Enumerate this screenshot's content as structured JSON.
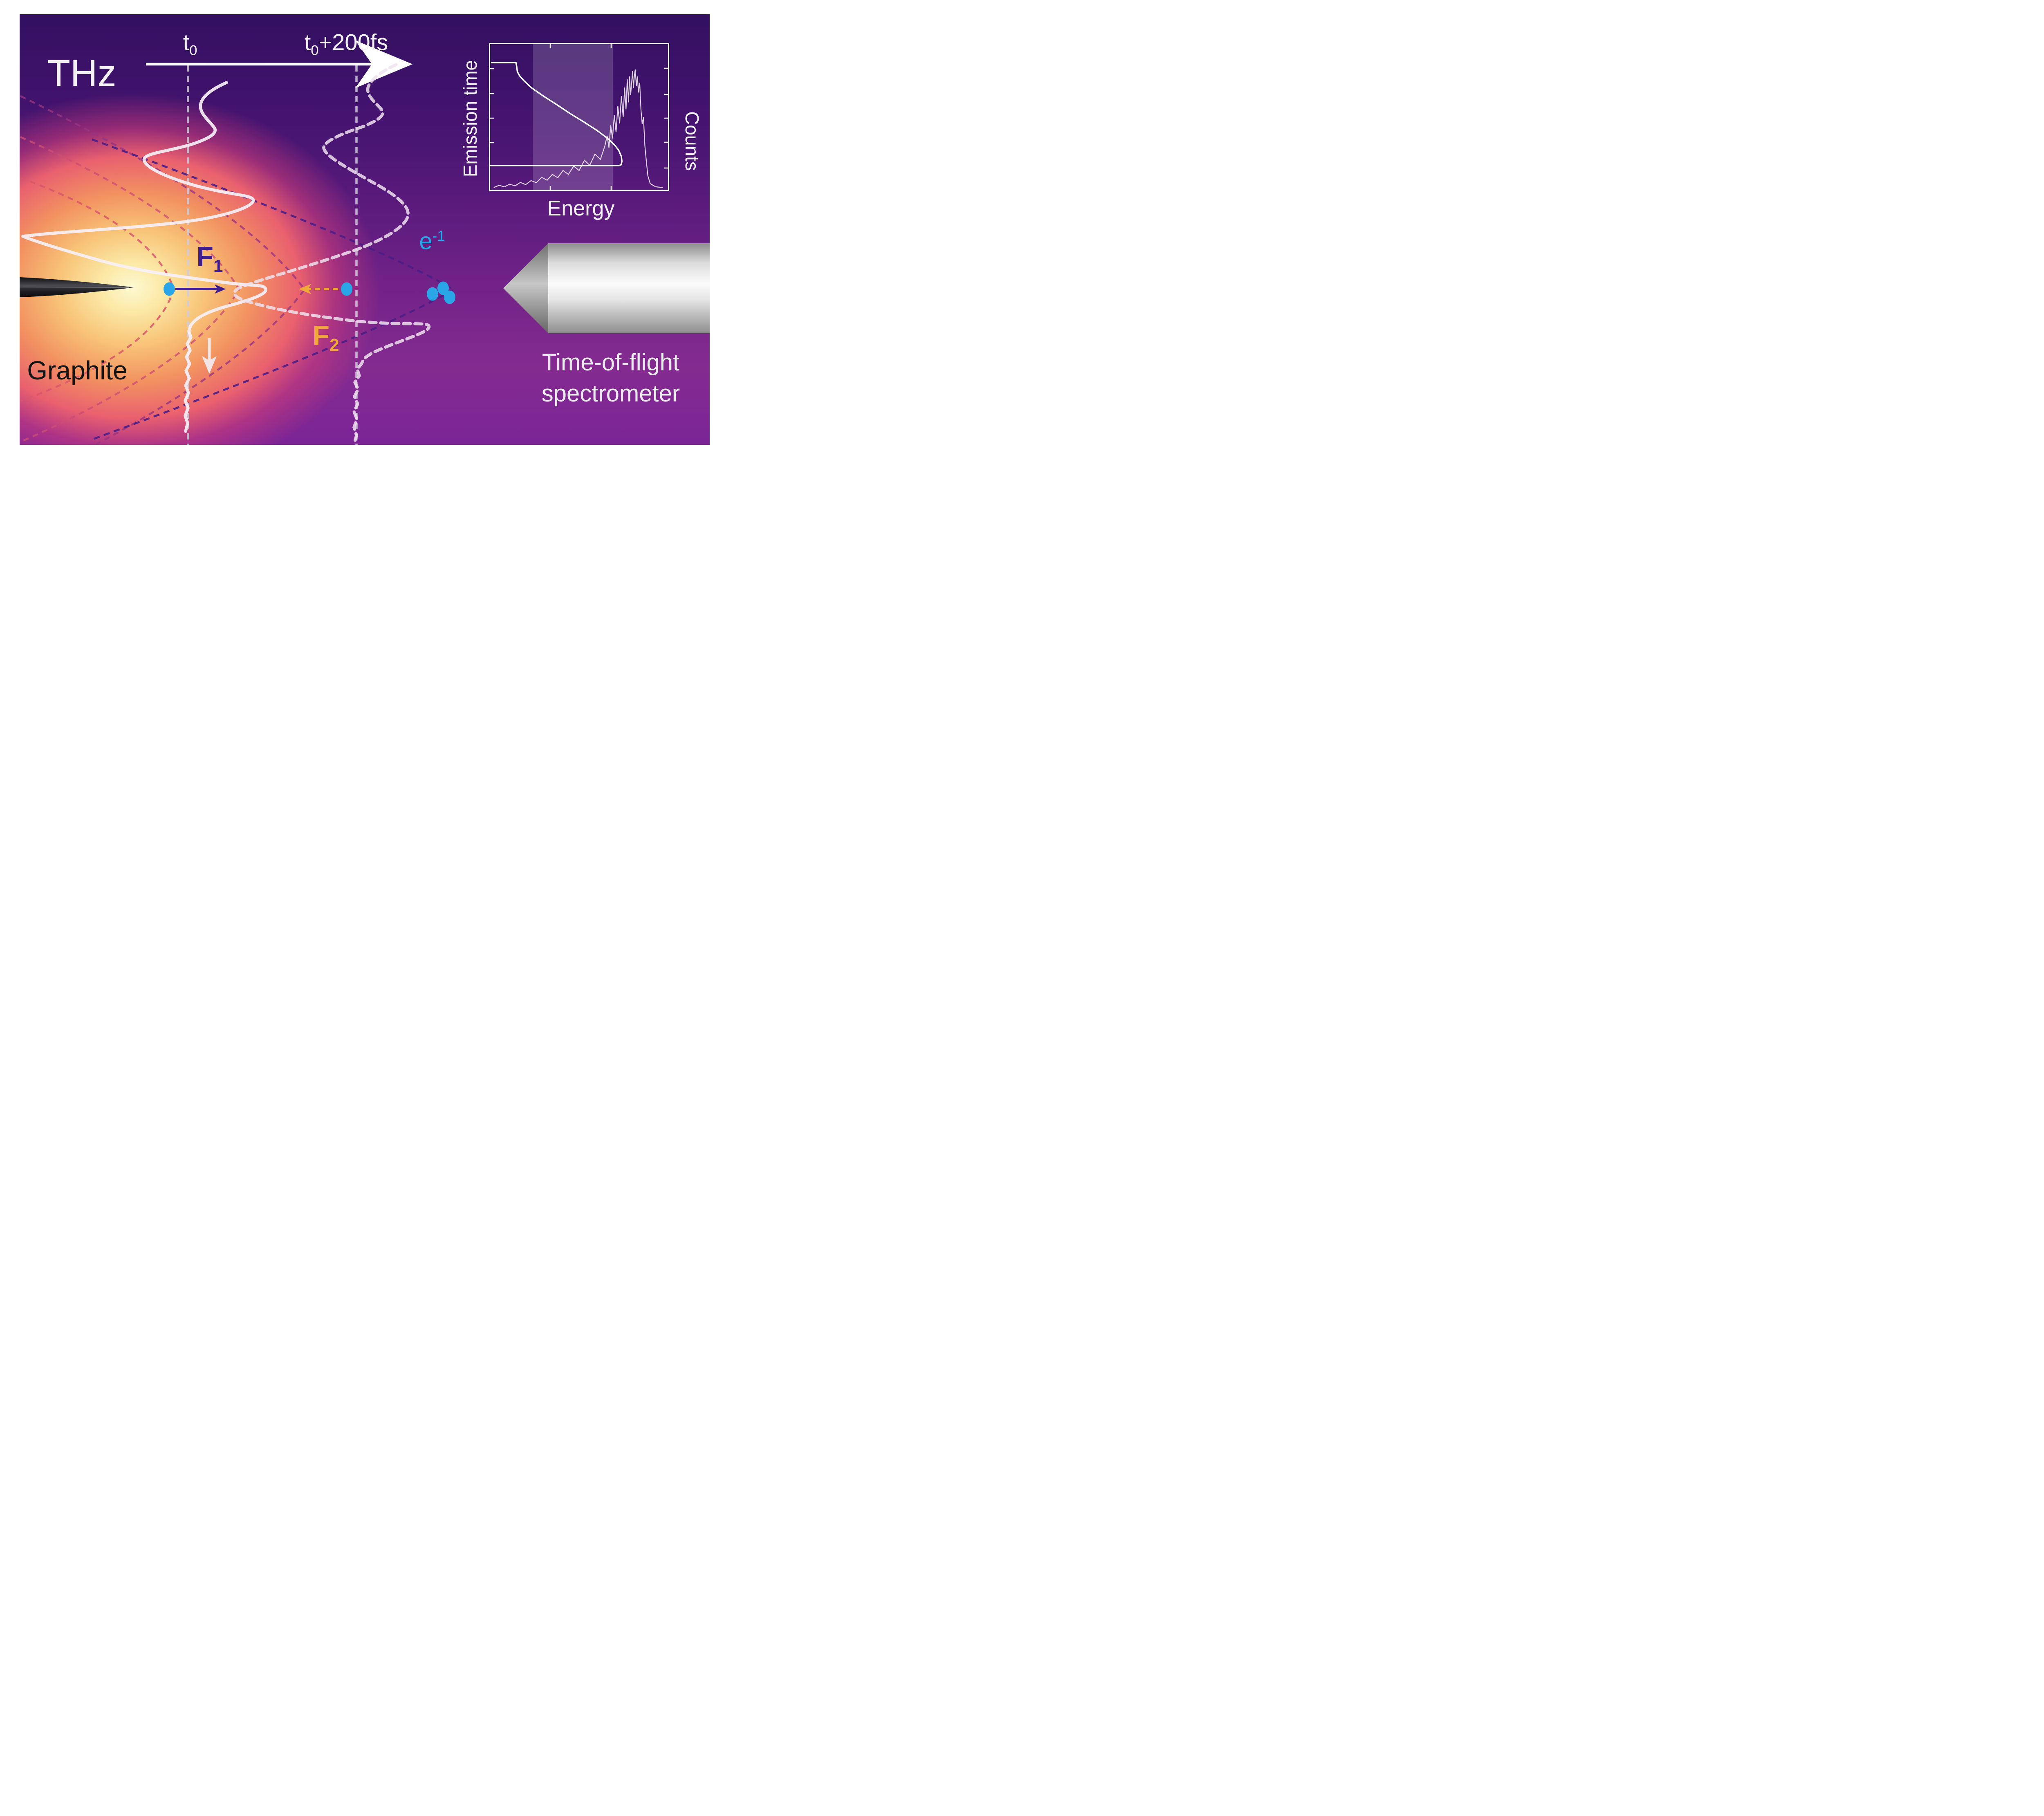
{
  "labels": {
    "thz": "THz",
    "graphite": "Graphite",
    "tof_line1": "Time-of-flight",
    "tof_line2": "spectrometer"
  },
  "timeline": {
    "t0": {
      "base": "t",
      "sub": "0"
    },
    "t1": {
      "base": "t",
      "sub": "0",
      "rest": "+200fs"
    }
  },
  "forces": {
    "f1": {
      "base": "F",
      "sub": "1"
    },
    "f2": {
      "base": "F",
      "sub": "2"
    }
  },
  "electron": {
    "base": "e",
    "sup": "-1"
  },
  "colors": {
    "background_top": "#331061",
    "background_bottom": "#7b2496",
    "glow_core": "#fdf9d2",
    "glow_orange": "#f29260",
    "glow_pink": "#e9606f",
    "waveform_solid": "#f7f0f6",
    "waveform_dashed": "#efe2ee",
    "time_marker_line": "#d2ccdc",
    "f1_arrow": "#3f1d8c",
    "f2_arrow": "#f2a93b",
    "electron_dot": "#29a5e8",
    "contour_near_tip": "#d8566b",
    "contour_far": "#4a1e87",
    "graphite_text": "#141414",
    "white_text": "#f4f2f6"
  },
  "chart_data": {
    "type": "line",
    "title": "",
    "xlabel": "Energy",
    "ylabel_left": "Emission time",
    "ylabel_right": "Counts",
    "axis_ranges": "unlabeled (arbitrary units)",
    "grid": false,
    "legend": "none",
    "shaded_band_x": [
      0.24,
      0.689
    ],
    "series": [
      {
        "name": "emission-time-vs-energy",
        "x": [
          0.005,
          0.145,
          0.149,
          0.153,
          0.166,
          0.19,
          0.235,
          0.3,
          0.37,
          0.45,
          0.53,
          0.6,
          0.655,
          0.695,
          0.722,
          0.738,
          0.741,
          0.737,
          0.725,
          0.7,
          0.0
        ],
        "y": [
          0.127,
          0.127,
          0.152,
          0.19,
          0.218,
          0.252,
          0.302,
          0.357,
          0.412,
          0.477,
          0.537,
          0.592,
          0.642,
          0.687,
          0.727,
          0.772,
          0.805,
          0.828,
          0.834,
          0.834,
          0.834
        ]
      },
      {
        "name": "counts-spectrum",
        "x": [
          0.02,
          0.05,
          0.08,
          0.11,
          0.14,
          0.17,
          0.2,
          0.23,
          0.26,
          0.29,
          0.32,
          0.35,
          0.38,
          0.41,
          0.44,
          0.47,
          0.5,
          0.53,
          0.56,
          0.59,
          0.62,
          0.645,
          0.658,
          0.668,
          0.678,
          0.688,
          0.698,
          0.708,
          0.718,
          0.728,
          0.738,
          0.748,
          0.756,
          0.764,
          0.771,
          0.778,
          0.784,
          0.79,
          0.796,
          0.801,
          0.806,
          0.811,
          0.816,
          0.822,
          0.828,
          0.834,
          0.841,
          0.848,
          0.855,
          0.862,
          0.87,
          0.878,
          0.887,
          0.9,
          0.93,
          0.97
        ],
        "y": [
          0.985,
          0.97,
          0.98,
          0.962,
          0.974,
          0.95,
          0.965,
          0.938,
          0.952,
          0.915,
          0.935,
          0.895,
          0.918,
          0.868,
          0.895,
          0.838,
          0.868,
          0.798,
          0.832,
          0.755,
          0.792,
          0.7,
          0.628,
          0.712,
          0.558,
          0.648,
          0.488,
          0.605,
          0.425,
          0.545,
          0.358,
          0.502,
          0.298,
          0.448,
          0.242,
          0.4,
          0.222,
          0.348,
          0.258,
          0.185,
          0.3,
          0.215,
          0.174,
          0.288,
          0.222,
          0.332,
          0.265,
          0.45,
          0.548,
          0.502,
          0.695,
          0.8,
          0.905,
          0.958,
          0.98,
          0.985
        ]
      }
    ]
  }
}
